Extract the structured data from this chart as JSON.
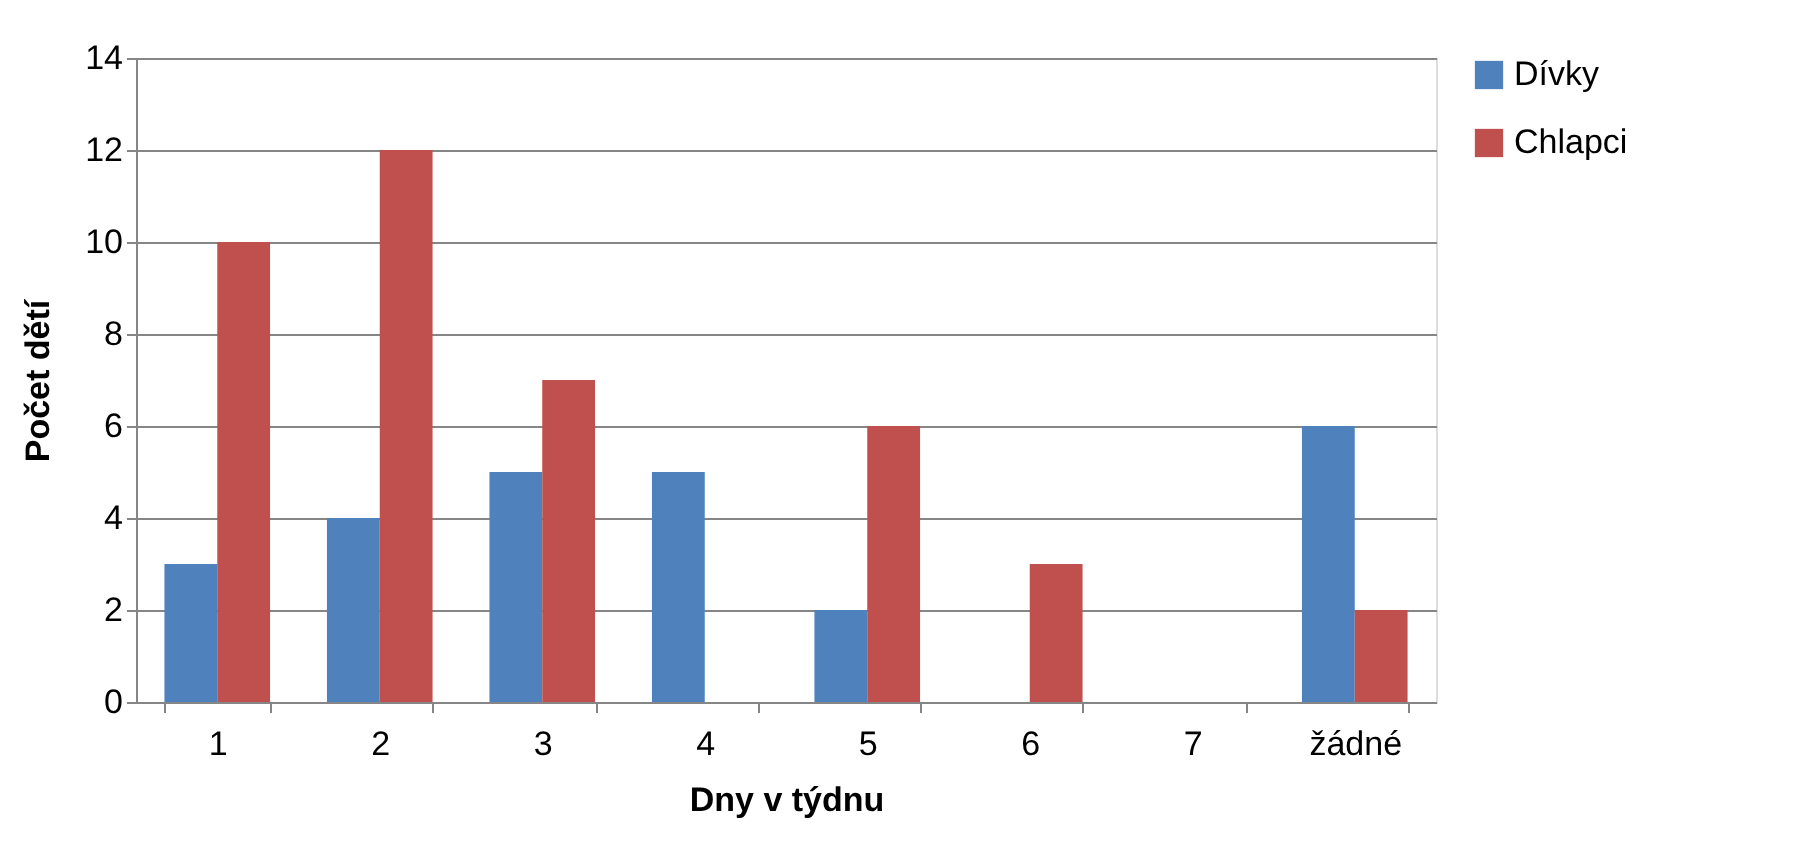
{
  "chart_data": {
    "type": "bar",
    "xlabel": "Dny v týdnu",
    "ylabel": "Počet dětí",
    "categories": [
      "1",
      "2",
      "3",
      "4",
      "5",
      "6",
      "7",
      "žádné"
    ],
    "series": [
      {
        "name": "Dívky",
        "color": "#4f81bd",
        "values": [
          3,
          4,
          5,
          5,
          2,
          0,
          0,
          6
        ]
      },
      {
        "name": "Chlapci",
        "color": "#c0504d",
        "values": [
          10,
          12,
          7,
          0,
          6,
          3,
          0,
          2
        ]
      }
    ],
    "ylim": [
      0,
      14
    ],
    "yticks": [
      0,
      2,
      4,
      6,
      8,
      10,
      12,
      14
    ],
    "grid": "y",
    "legend": "right"
  }
}
